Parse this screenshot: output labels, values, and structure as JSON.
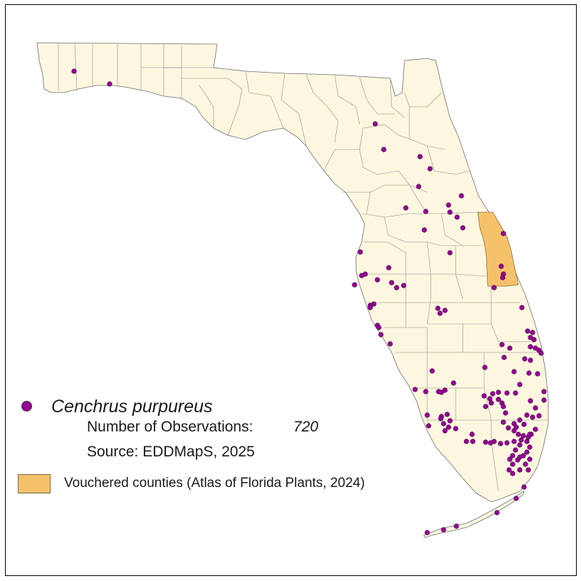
{
  "map": {
    "species": "Cenchrus purpureus",
    "observations_label": "Number of Observations:",
    "observations_count": "720",
    "source_label": "Source: EDDMapS, 2025",
    "vouchered_label": "Vouchered counties (Atlas of Florida Plants, 2024)",
    "colors": {
      "land": "#fdf7e0",
      "county_border": "#8c8c8c",
      "vouchered": "#f5c26b",
      "observation": "#990099"
    },
    "icons": {
      "observation_marker": "purple-circle-icon",
      "vouchered_swatch": "orange-square-icon"
    }
  }
}
